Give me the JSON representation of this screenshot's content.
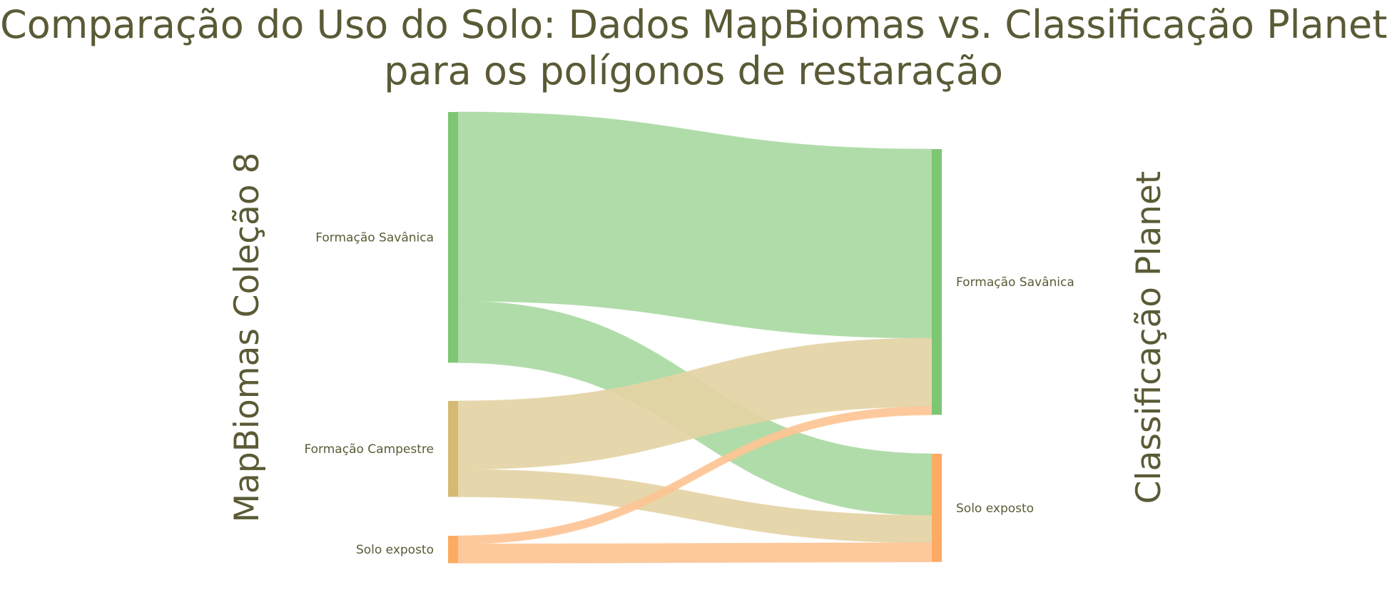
{
  "title": {
    "line1": "Comparação do Uso do Solo: Dados MapBiomas vs. Classificação Planet",
    "line2": "para os polígonos de restaração"
  },
  "chart_data": {
    "type": "sankey",
    "left_axis_label": "MapBiomas Coleção 8",
    "right_axis_label": "Classificação Planet",
    "source_nodes": [
      {
        "name": "Formação Savânica",
        "color": "#7dc774"
      },
      {
        "name": "Formação Campestre",
        "color": "#d4ba72"
      },
      {
        "name": "Solo exposto",
        "color": "#fdaa63"
      }
    ],
    "target_nodes": [
      {
        "name": "Formação Savânica",
        "color": "#7dc774"
      },
      {
        "name": "Solo exposto",
        "color": "#fdaa63"
      }
    ],
    "links": [
      {
        "source": 0,
        "target": 0,
        "value": 6.9,
        "color": "#a9d9a2"
      },
      {
        "source": 0,
        "target": 1,
        "value": 2.25,
        "color": "#a9d9a2"
      },
      {
        "source": 1,
        "target": 0,
        "value": 2.5,
        "color": "#e4d3a5"
      },
      {
        "source": 1,
        "target": 1,
        "value": 1.0,
        "color": "#e4d3a5"
      },
      {
        "source": 2,
        "target": 0,
        "value": 0.3,
        "color": "#fdc494"
      },
      {
        "source": 2,
        "target": 1,
        "value": 0.7,
        "color": "#fdc494"
      }
    ]
  }
}
